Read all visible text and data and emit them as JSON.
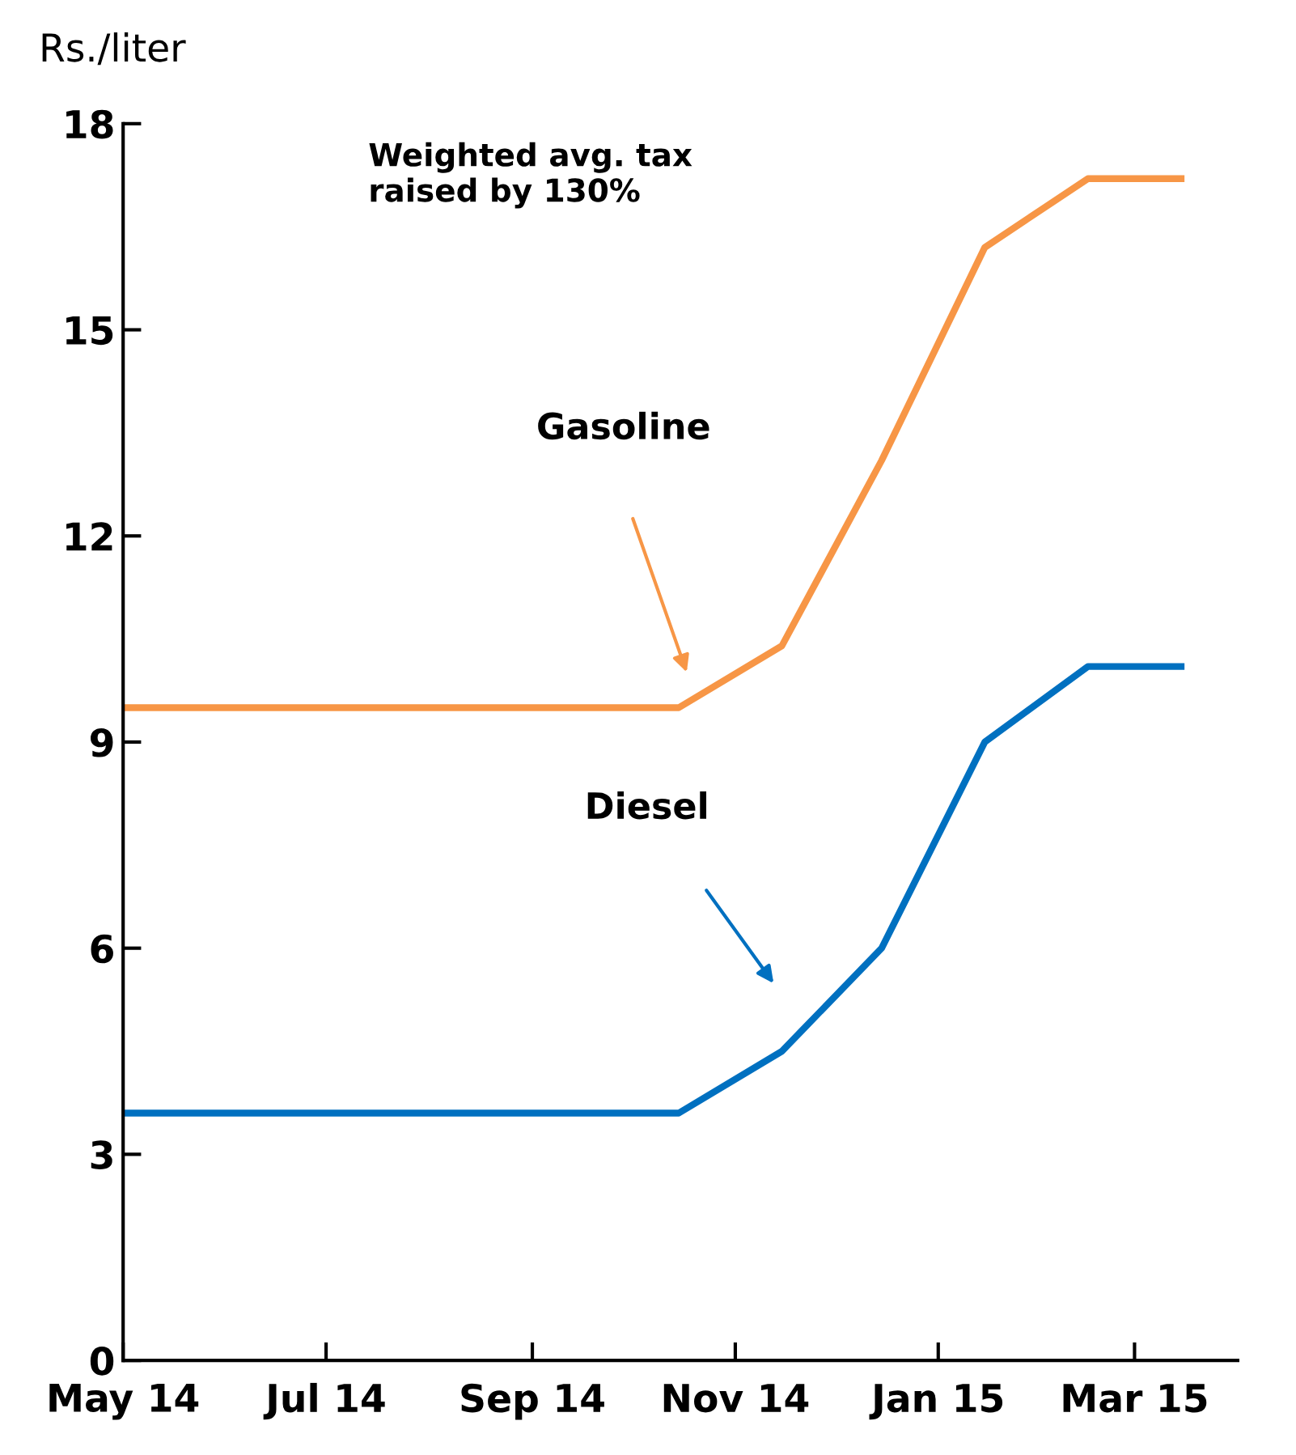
{
  "chart_data": {
    "type": "line",
    "ylabel": "Rs./liter",
    "annotations": [
      "Weighted avg. tax\nraised by 130%",
      "Gasoline",
      "Diesel"
    ],
    "x": [
      "2014-05-01",
      "2014-10-15",
      "2014-11-15",
      "2014-12-15",
      "2015-01-15",
      "2015-02-15",
      "2015-03-15"
    ],
    "series": [
      {
        "color": "#f79646",
        "values": [
          9.5,
          9.5,
          10.4,
          13.1,
          16.2,
          17.2,
          17.2
        ]
      },
      {
        "color": "#0070c0",
        "values": [
          3.6,
          3.6,
          4.5,
          6.0,
          9.0,
          10.1,
          10.1
        ]
      }
    ],
    "xlim": [
      "2014-05-01",
      "2015-04-01"
    ],
    "xticks": [
      {
        "value": "2014-05-01",
        "label": "May 14"
      },
      {
        "value": "2014-07-01",
        "label": "Jul 14"
      },
      {
        "value": "2014-09-01",
        "label": "Sep 14"
      },
      {
        "value": "2014-11-01",
        "label": "Nov 14"
      },
      {
        "value": "2015-01-01",
        "label": "Jan 15"
      },
      {
        "value": "2015-03-01",
        "label": "Mar 15"
      }
    ],
    "ylim": [
      0,
      18
    ],
    "yticks": [
      0,
      3,
      6,
      9,
      12,
      15,
      18
    ],
    "grid": false,
    "legend": false,
    "marker": "none",
    "line_style": "solid"
  }
}
